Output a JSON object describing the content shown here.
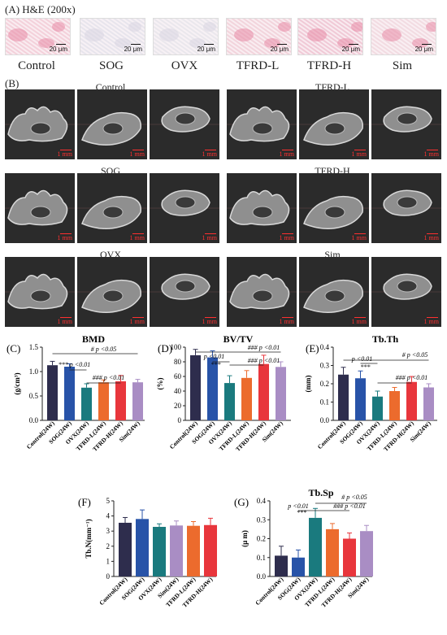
{
  "panelA": {
    "label": "(A) H&E (200x)",
    "scale_text": "20 μm",
    "groups": [
      "Control",
      "SOG",
      "OVX",
      "TFRD-L",
      "TFRD-H",
      "Sim"
    ]
  },
  "panelB": {
    "label": "(B)",
    "scale_text": "1 mm",
    "groups": [
      "Control",
      "TFRD-L",
      "SOG",
      "TFRD-H",
      "OVX",
      "Sim"
    ]
  },
  "colors": {
    "control": "#2e2d4d",
    "sog": "#2853a8",
    "ovx": "#1a7a7e",
    "tfrdl": "#ec6b2d",
    "tfrdh": "#e8363c",
    "sim": "#a98dc4"
  },
  "chart_data": [
    {
      "id": "C",
      "panel_label": "(C)",
      "type": "bar",
      "title": "BMD",
      "ylabel": "(g/cm³)",
      "ylim": [
        0,
        1.5
      ],
      "yticks": [
        0.0,
        0.5,
        1.0,
        1.5
      ],
      "categories": [
        "Control(24W)",
        "SOG(24W)",
        "OVX(24W)",
        "TFRD-L(24W)",
        "TFRD-H(24W)",
        "Sim(24W)"
      ],
      "values": [
        1.13,
        1.1,
        0.67,
        0.78,
        0.8,
        0.78
      ],
      "errors": [
        0.08,
        0.06,
        0.08,
        0.05,
        0.12,
        0.06
      ],
      "colors": [
        "#2e2d4d",
        "#2853a8",
        "#1a7a7e",
        "#ec6b2d",
        "#e8363c",
        "#a98dc4"
      ],
      "annotations": [
        "# p <0.05",
        "*** p <0.01",
        "### p <0.01"
      ]
    },
    {
      "id": "D",
      "panel_label": "(D)",
      "type": "bar",
      "title": "BV/TV",
      "ylabel": "(%)",
      "ylim": [
        0,
        100
      ],
      "yticks": [
        0,
        20,
        40,
        60,
        80,
        100
      ],
      "categories": [
        "Control(24W)",
        "SOG(24W)",
        "OVX(24W)",
        "TFRD-L(24W)",
        "TFRD-H(24W)",
        "Sim(24W)"
      ],
      "values": [
        89,
        86,
        51,
        58,
        77,
        73
      ],
      "errors": [
        8,
        9,
        10,
        10,
        12,
        7
      ],
      "colors": [
        "#2e2d4d",
        "#2853a8",
        "#1a7a7e",
        "#ec6b2d",
        "#e8363c",
        "#a98dc4"
      ],
      "annotations": [
        "### p <0.01",
        "p <0.01",
        "***",
        "### p <0.01"
      ]
    },
    {
      "id": "E",
      "panel_label": "(E)",
      "type": "bar",
      "title": "Tb.Th",
      "ylabel": "(mm)",
      "ylim": [
        0,
        0.4
      ],
      "yticks": [
        0.0,
        0.1,
        0.2,
        0.3,
        0.4
      ],
      "categories": [
        "Control(24W)",
        "SOG(24W)",
        "OVX(24W)",
        "TFRD-L(24W)",
        "TFRD-H(24W)",
        "Sim(24W)"
      ],
      "values": [
        0.25,
        0.23,
        0.13,
        0.16,
        0.21,
        0.18
      ],
      "errors": [
        0.04,
        0.04,
        0.03,
        0.02,
        0.03,
        0.02
      ],
      "colors": [
        "#2e2d4d",
        "#2853a8",
        "#1a7a7e",
        "#ec6b2d",
        "#e8363c",
        "#a98dc4"
      ],
      "annotations": [
        "p <0.01",
        "***",
        "# p <0.05",
        "### p <0.01"
      ]
    },
    {
      "id": "F",
      "panel_label": "(F)",
      "type": "bar",
      "title": "",
      "ylabel": "Tb.N(mm⁻¹)",
      "ylim": [
        0,
        5
      ],
      "yticks": [
        0,
        1,
        2,
        3,
        4,
        5
      ],
      "categories": [
        "Control(24W)",
        "SOG(24W)",
        "OVX(24W)",
        "Sim(24W)",
        "TFRD-L(24W)",
        "TFRD-H(24W)"
      ],
      "values": [
        3.55,
        3.8,
        3.28,
        3.37,
        3.35,
        3.4
      ],
      "errors": [
        0.35,
        0.6,
        0.2,
        0.3,
        0.28,
        0.45
      ],
      "colors": [
        "#2e2d4d",
        "#2853a8",
        "#1a7a7e",
        "#a98dc4",
        "#ec6b2d",
        "#e8363c"
      ],
      "annotations": []
    },
    {
      "id": "G",
      "panel_label": "(G)",
      "type": "bar",
      "title": "Tb.Sp",
      "ylabel": "(μ m)",
      "ylim": [
        0,
        0.4
      ],
      "yticks": [
        0.0,
        0.1,
        0.2,
        0.3,
        0.4
      ],
      "categories": [
        "Control(24W)",
        "SOG(24W)",
        "OVX(24W)",
        "TFRD-L(24W)",
        "TFRD-H(24W)",
        "Sim(24W)"
      ],
      "values": [
        0.11,
        0.1,
        0.31,
        0.25,
        0.2,
        0.24
      ],
      "errors": [
        0.05,
        0.04,
        0.05,
        0.03,
        0.03,
        0.03
      ],
      "colors": [
        "#2e2d4d",
        "#2853a8",
        "#1a7a7e",
        "#ec6b2d",
        "#e8363c",
        "#a98dc4"
      ],
      "annotations": [
        "# p <0.05",
        "p <0.01",
        "***",
        "### p <0.01"
      ]
    }
  ]
}
